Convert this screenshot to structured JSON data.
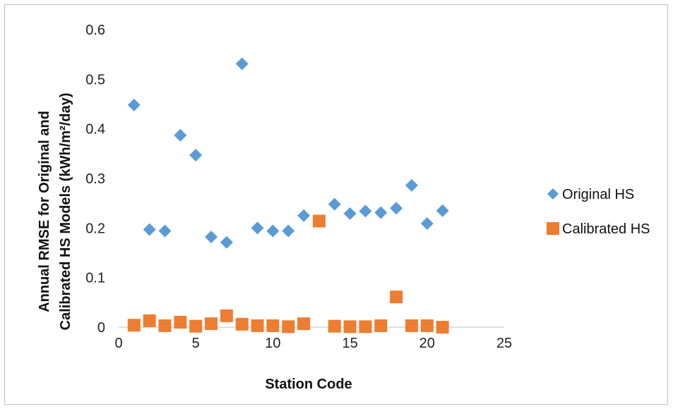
{
  "chart_data": {
    "type": "scatter",
    "title": "",
    "xlabel": "Station Code",
    "ylabel_line1": "Annual RMSE for Original and",
    "ylabel_line2": "Calibrated HS Models (kWh/m²/day)",
    "xlim": [
      0,
      25
    ],
    "ylim": [
      0,
      0.6
    ],
    "xticks": [
      0,
      5,
      10,
      15,
      20,
      25
    ],
    "yticks": [
      0,
      0.1,
      0.2,
      0.3,
      0.4,
      0.5,
      0.6
    ],
    "xtick_labels": [
      "0",
      "5",
      "10",
      "15",
      "20",
      "25"
    ],
    "ytick_labels": [
      "0",
      "0.1",
      "0.2",
      "0.3",
      "0.4",
      "0.5",
      "0.6"
    ],
    "grid": false,
    "legend_position": "right",
    "series": [
      {
        "name": "Original HS",
        "marker": "diamond",
        "color": "#5b9bd5",
        "x": [
          1,
          2,
          3,
          4,
          5,
          6,
          7,
          8,
          9,
          10,
          11,
          12,
          14,
          15,
          16,
          17,
          18,
          19,
          20,
          21
        ],
        "y": [
          0.448,
          0.197,
          0.194,
          0.387,
          0.347,
          0.182,
          0.171,
          0.531,
          0.2,
          0.194,
          0.194,
          0.225,
          0.248,
          0.229,
          0.234,
          0.231,
          0.24,
          0.286,
          0.209,
          0.235
        ]
      },
      {
        "name": "Calibrated HS",
        "marker": "square",
        "color": "#ed7d31",
        "x": [
          1,
          2,
          3,
          4,
          5,
          6,
          7,
          8,
          9,
          10,
          11,
          12,
          13,
          14,
          15,
          16,
          17,
          18,
          19,
          20,
          21
        ],
        "y": [
          0.004,
          0.013,
          0.003,
          0.01,
          0.002,
          0.007,
          0.023,
          0.006,
          0.003,
          0.003,
          0.001,
          0.007,
          0.214,
          0.002,
          0.001,
          0.001,
          0.003,
          0.061,
          0.003,
          0.003,
          0.0
        ]
      }
    ]
  }
}
